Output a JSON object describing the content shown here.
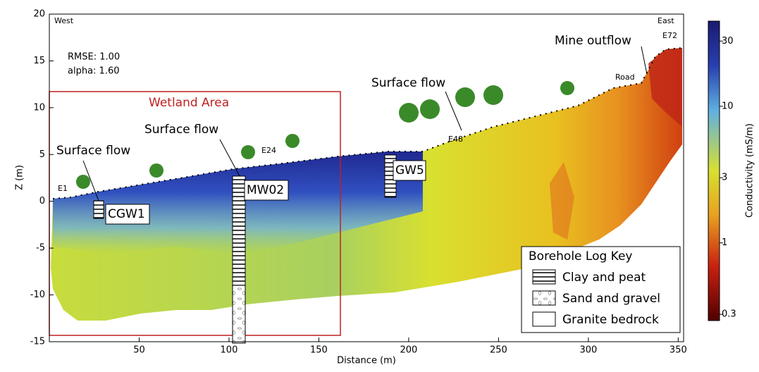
{
  "chart_data": {
    "type": "section",
    "xlabel": "Distance (m)",
    "ylabel": "Z (m)",
    "xlim": [
      0,
      353
    ],
    "xticks": [
      50,
      100,
      150,
      200,
      250,
      300,
      350
    ],
    "ylim": [
      -15,
      20
    ],
    "yticks": [
      -15,
      -10,
      -5,
      0,
      5,
      10,
      15,
      20
    ],
    "colorbar": {
      "label": "Conductivity (mS/m)",
      "scale": "log",
      "lim": [
        0.27,
        42
      ],
      "ticks": [
        30,
        10,
        3,
        1,
        0.3
      ]
    },
    "labels": {
      "west": "West",
      "east": "East",
      "rmse": "RMSE: 1.00",
      "alpha": "alpha: 1.60",
      "wetland": "Wetland Area",
      "flow1": "Surface flow",
      "flow2": "Surface flow",
      "flow3": "Surface flow",
      "mine": "Mine outflow",
      "road": "Road",
      "e1": "E1",
      "e24": "E24",
      "e48": "E48",
      "e72": "E72",
      "cgw1": "CGW1",
      "mw02": "MW02",
      "gw5": "GW5"
    },
    "legend": {
      "title": "Borehole Log Key",
      "items": [
        "Clay and peat",
        "Sand and gravel",
        "Granite bedrock"
      ]
    }
  }
}
